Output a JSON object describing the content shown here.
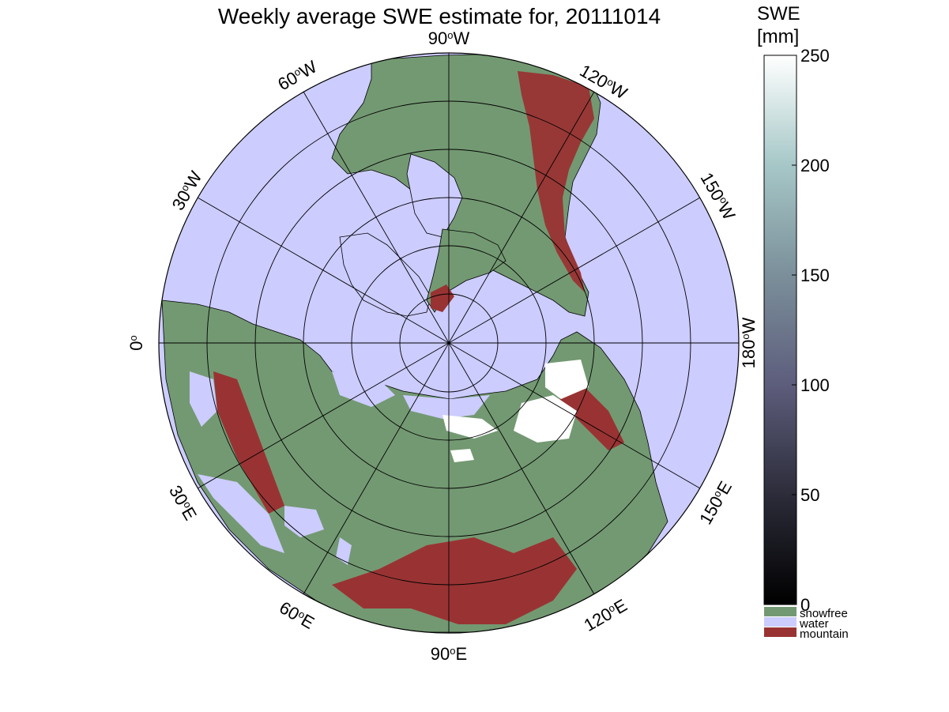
{
  "title": "Weekly average SWE estimate for, 20111014",
  "colors": {
    "ocean": "#ccccff",
    "land": "#739972",
    "mountain": "#993333",
    "snow": "#ffffff",
    "grid": "#000000"
  },
  "longitude_labels": [
    {
      "id": "90w",
      "deg": "90",
      "hemi": "W"
    },
    {
      "id": "60w",
      "deg": "60",
      "hemi": "W"
    },
    {
      "id": "120w",
      "deg": "120",
      "hemi": "W"
    },
    {
      "id": "30w",
      "deg": "30",
      "hemi": "W"
    },
    {
      "id": "150w",
      "deg": "150",
      "hemi": "W"
    },
    {
      "id": "0",
      "deg": "0",
      "hemi": ""
    },
    {
      "id": "180w",
      "deg": "180",
      "hemi": "W"
    },
    {
      "id": "30e",
      "deg": "30",
      "hemi": "E"
    },
    {
      "id": "150e",
      "deg": "150",
      "hemi": "E"
    },
    {
      "id": "60e",
      "deg": "60",
      "hemi": "E"
    },
    {
      "id": "120e",
      "deg": "120",
      "hemi": "E"
    },
    {
      "id": "90e",
      "deg": "90",
      "hemi": "E"
    }
  ],
  "colorbar": {
    "title_line1": "SWE",
    "title_line2": "[mm]",
    "min": 0,
    "max": 250,
    "ticks": [
      "250",
      "200",
      "150",
      "100",
      "50",
      "0"
    ],
    "tick_values": [
      250,
      200,
      150,
      100,
      50,
      0
    ],
    "gradient": [
      "#ffffff",
      "#a6c7c7",
      "#7b8f9a",
      "#5d5d7c",
      "#2c2c3a",
      "#000000"
    ]
  },
  "legend": [
    {
      "label": "snowfree",
      "color": "#739972"
    },
    {
      "label": "water",
      "color": "#ccccff"
    },
    {
      "label": "mountain",
      "color": "#993333"
    }
  ]
}
